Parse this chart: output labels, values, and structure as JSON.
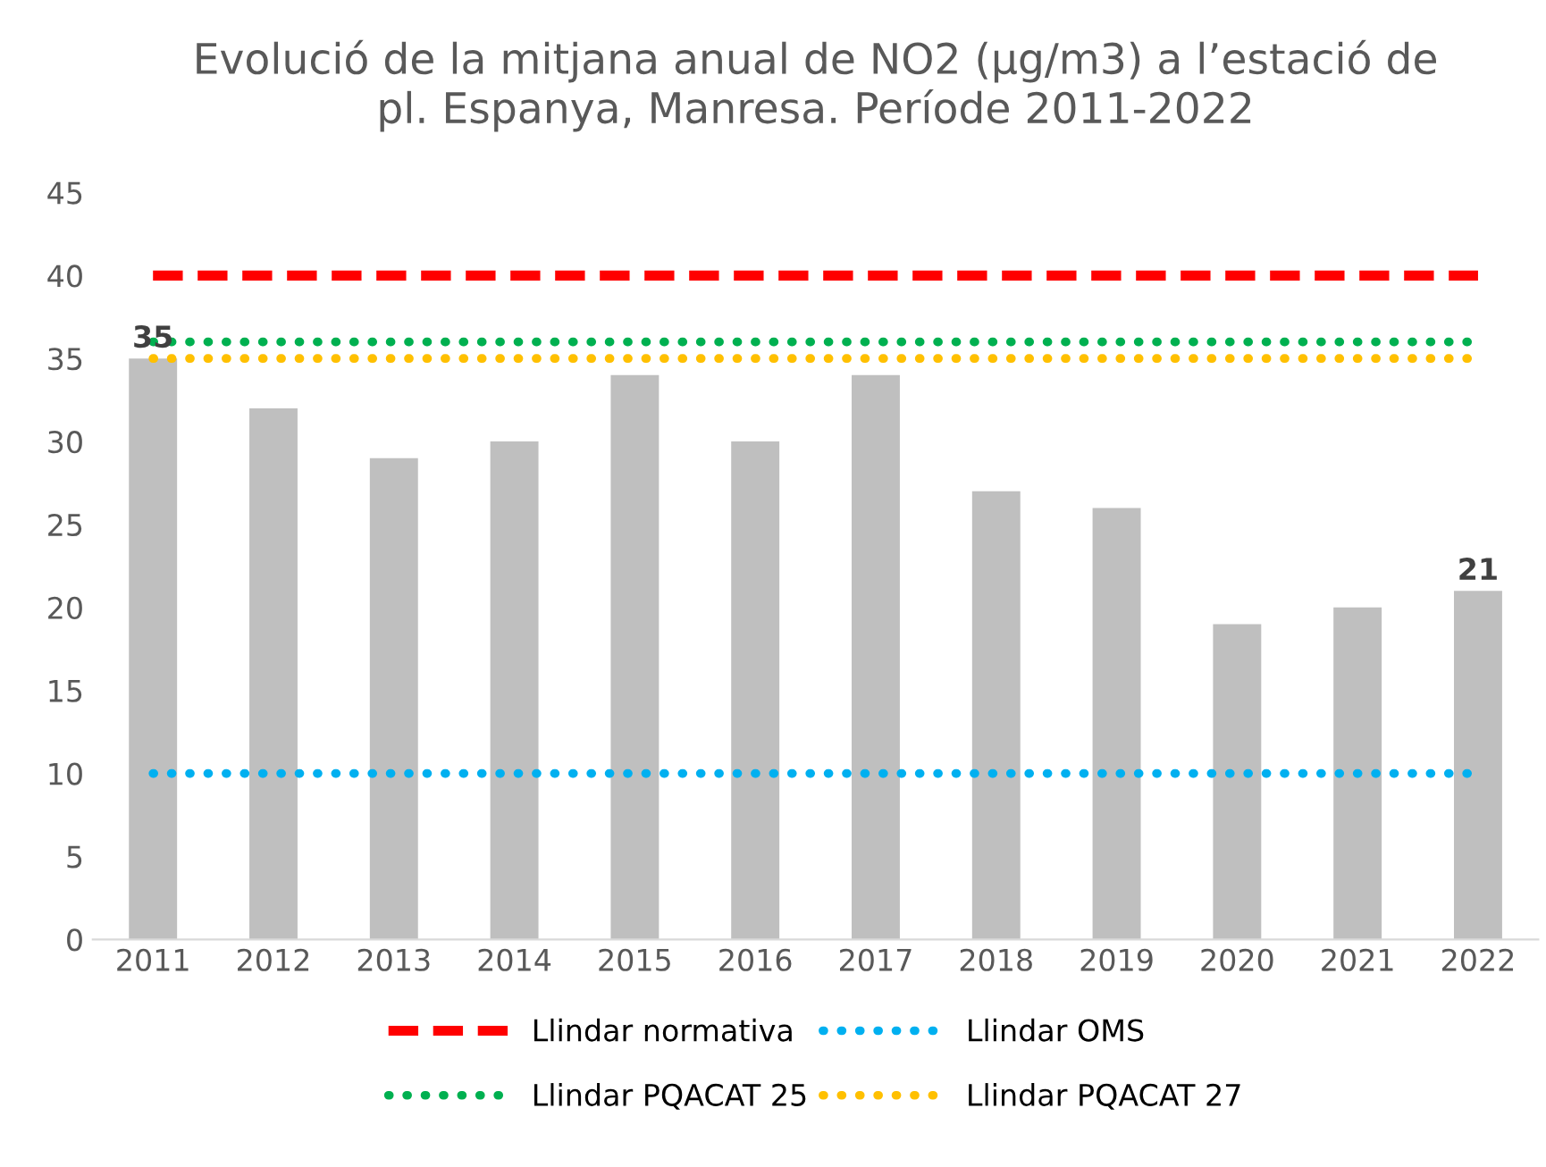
{
  "chart_data": {
    "type": "bar",
    "title": "Evolució de la mitjana anual de NO2 (µg/m3) a l’estació de\npl. Espanya, Manresa. Període 2011-2022",
    "categories": [
      "2011",
      "2012",
      "2013",
      "2014",
      "2015",
      "2016",
      "2017",
      "2018",
      "2019",
      "2020",
      "2021",
      "2022"
    ],
    "values": [
      35,
      32,
      29,
      30,
      34,
      30,
      34,
      27,
      26,
      19,
      20,
      21
    ],
    "color": "#bfbfbf",
    "value_labels": [
      "35",
      null,
      null,
      null,
      null,
      null,
      null,
      null,
      null,
      null,
      null,
      "21"
    ],
    "ylim": [
      0,
      45
    ],
    "yticks": [
      0,
      5,
      10,
      15,
      20,
      25,
      30,
      35,
      40,
      45
    ],
    "grid": false,
    "legend": "bottom",
    "ref_lines": [
      {
        "axis": "y",
        "value": 40,
        "label": "Llindar normativa",
        "color": "#ff0000",
        "line_style": "dashed"
      },
      {
        "axis": "y",
        "value": 10,
        "label": "Llindar OMS",
        "color": "#00b0f0",
        "line_style": "dotted"
      },
      {
        "axis": "y",
        "value": 36,
        "label": "Llindar PQACAT 25",
        "color": "#00b050",
        "line_style": "dotted"
      },
      {
        "axis": "y",
        "value": 35,
        "label": "Llindar PQACAT 27",
        "color": "#ffc000",
        "line_style": "dotted"
      }
    ]
  }
}
